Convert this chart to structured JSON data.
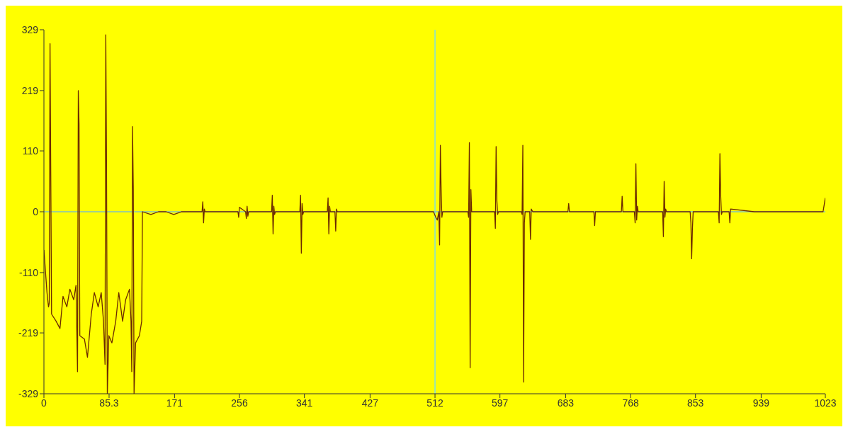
{
  "chart_data": {
    "type": "line",
    "color": "#6b2a00",
    "x": [
      0,
      4,
      6,
      7,
      8,
      9,
      10,
      16,
      21,
      25,
      30,
      34,
      39,
      42,
      44,
      45,
      46,
      47,
      53,
      57,
      62,
      66,
      71,
      75,
      78,
      80,
      81,
      82,
      83,
      85,
      89,
      94,
      98,
      103,
      107,
      112,
      114,
      115,
      116,
      117,
      118,
      120,
      125,
      128,
      129,
      140,
      150,
      160,
      170,
      180,
      207,
      208,
      209,
      210,
      211,
      254,
      255,
      256,
      264,
      265,
      266,
      267,
      268,
      298,
      299,
      300,
      301,
      302,
      303,
      335,
      336,
      337,
      338,
      339,
      340,
      371,
      372,
      373,
      374,
      375,
      381,
      382,
      383,
      384,
      510,
      513,
      515,
      517,
      518,
      519,
      520,
      521,
      522,
      555,
      556,
      557,
      558,
      559,
      560,
      590,
      591,
      592,
      593,
      594,
      595,
      625,
      626,
      627,
      628,
      629,
      630,
      636,
      637,
      638,
      640,
      686,
      687,
      688,
      720,
      721,
      722,
      756,
      757,
      758,
      773,
      774,
      775,
      776,
      777,
      778,
      810,
      811,
      812,
      813,
      814,
      815,
      846,
      847,
      848,
      849,
      850,
      883,
      884,
      885,
      886,
      887,
      888,
      897,
      898,
      899,
      930,
      1020,
      1023
    ],
    "values": [
      -69,
      -146,
      -172,
      -165,
      304,
      61,
      -185,
      -198,
      -211,
      -153,
      -172,
      -140,
      -159,
      -133,
      -289,
      219,
      158,
      -224,
      -230,
      -263,
      -185,
      -146,
      -172,
      -146,
      -198,
      -276,
      320,
      74,
      -329,
      -224,
      -237,
      -198,
      -146,
      -198,
      -159,
      -140,
      -198,
      -289,
      154,
      41,
      -329,
      -237,
      -224,
      -198,
      0,
      -5,
      0,
      0,
      -5,
      0,
      0,
      18,
      -20,
      5,
      0,
      0,
      -10,
      8,
      0,
      -12,
      10,
      -8,
      0,
      0,
      30,
      -40,
      10,
      -5,
      0,
      0,
      30,
      -75,
      15,
      -5,
      0,
      0,
      25,
      -40,
      10,
      0,
      0,
      -35,
      5,
      0,
      0,
      -10,
      -15,
      0,
      -60,
      120,
      40,
      -10,
      0,
      0,
      -10,
      125,
      -282,
      40,
      0,
      0,
      -30,
      118,
      20,
      -5,
      0,
      0,
      -5,
      120,
      -308,
      -20,
      0,
      0,
      -50,
      5,
      0,
      0,
      15,
      0,
      0,
      -25,
      0,
      0,
      28,
      0,
      0,
      -20,
      87,
      -15,
      10,
      0,
      0,
      -45,
      55,
      -10,
      5,
      0,
      0,
      -20,
      -85,
      -30,
      0,
      0,
      -20,
      105,
      30,
      -5,
      0,
      0,
      -20,
      5,
      0,
      0,
      25
    ],
    "xlim": [
      0,
      1023
    ],
    "ylim": [
      -329,
      329
    ],
    "xticks": [
      0,
      85.3,
      171,
      256,
      341,
      427,
      512,
      597,
      683,
      768,
      853,
      939,
      1023
    ],
    "yticks": [
      -329,
      -219,
      -110,
      0,
      110,
      219,
      329
    ],
    "ref_lines": [
      {
        "axis": "x",
        "value": 512,
        "color": "#80e0e0"
      },
      {
        "axis": "y",
        "value": 0,
        "color": "#80c0c0"
      }
    ],
    "grid": false
  }
}
